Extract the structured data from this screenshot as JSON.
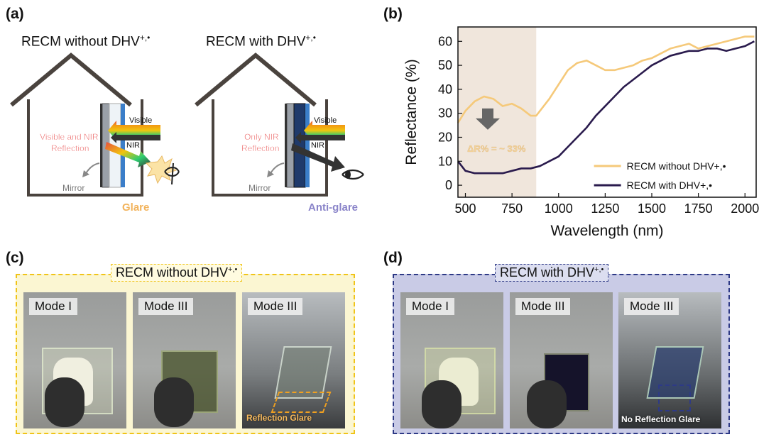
{
  "panels": {
    "a": {
      "label": "(a)",
      "left_house": {
        "title": "RECM without DHV",
        "title_sup": "+,•",
        "visible_label": "Visible",
        "nir_label": "NIR",
        "reflection_line1": "Visible and NIR",
        "reflection_line2": "Reflection",
        "mirror_label": "Mirror",
        "effect_label": "Glare"
      },
      "right_house": {
        "title": "RECM with DHV",
        "title_sup": "+,•",
        "visible_label": "Visible",
        "nir_label": "NIR",
        "reflection_line1": "Only NIR",
        "reflection_line2": "Reflection",
        "mirror_label": "Mirror",
        "effect_label": "Anti-glare"
      }
    },
    "b": {
      "label": "(b)"
    },
    "c": {
      "label": "(c)",
      "tag": "RECM without DHV",
      "tag_sup": "+,•",
      "photos": [
        {
          "mode": "Mode I"
        },
        {
          "mode": "Mode III"
        },
        {
          "mode": "Mode III",
          "caption": "Reflection Glare"
        }
      ]
    },
    "d": {
      "label": "(d)",
      "tag": "RECM with DHV",
      "tag_sup": "+,•",
      "photos": [
        {
          "mode": "Mode I"
        },
        {
          "mode": "Mode III"
        },
        {
          "mode": "Mode III",
          "caption": "No Reflection Glare"
        }
      ]
    }
  },
  "colors": {
    "without": "#f5c97a",
    "with": "#2a1b4d",
    "highlight": "#f0e6dc",
    "c_border": "#f0c419",
    "c_fill": "#fbf6d2",
    "d_border": "#2e3a86",
    "d_fill": "#c9cbe6",
    "glare_text": "#f2b35b",
    "antiglare_text": "#8a84c9",
    "reflection_text": "#e95757"
  },
  "chart_data": {
    "type": "line",
    "xlabel": "Wavelength (nm)",
    "ylabel": "Reflectance (%)",
    "xlim": [
      460,
      2060
    ],
    "ylim": [
      -5,
      66
    ],
    "xticks": [
      500,
      750,
      1000,
      1250,
      1500,
      1750,
      2000
    ],
    "yticks": [
      0,
      10,
      20,
      30,
      40,
      50,
      60
    ],
    "highlight_region": [
      460,
      880
    ],
    "annotation": "ΔR% = ~ 33%",
    "series": [
      {
        "name": "RECM without DHV+,•",
        "color": "#f5c97a",
        "x": [
          460,
          500,
          550,
          600,
          650,
          700,
          750,
          800,
          850,
          880,
          900,
          950,
          1000,
          1050,
          1100,
          1150,
          1200,
          1250,
          1300,
          1350,
          1400,
          1450,
          1500,
          1550,
          1600,
          1650,
          1700,
          1750,
          1800,
          1850,
          1900,
          1950,
          2000,
          2050
        ],
        "y": [
          26,
          31,
          35,
          37,
          36,
          33,
          34,
          32,
          29,
          29,
          31,
          36,
          42,
          48,
          51,
          52,
          50,
          48,
          48,
          49,
          50,
          52,
          53,
          55,
          57,
          58,
          59,
          57,
          58,
          59,
          60,
          61,
          62,
          62
        ]
      },
      {
        "name": "RECM with DHV+,•",
        "color": "#2a1b4d",
        "x": [
          460,
          500,
          550,
          600,
          650,
          700,
          750,
          800,
          850,
          900,
          950,
          1000,
          1050,
          1100,
          1150,
          1200,
          1250,
          1300,
          1350,
          1400,
          1450,
          1500,
          1550,
          1600,
          1650,
          1700,
          1750,
          1800,
          1850,
          1900,
          1950,
          2000,
          2050
        ],
        "y": [
          10,
          6,
          5,
          5,
          5,
          5,
          6,
          7,
          7,
          8,
          10,
          12,
          16,
          20,
          24,
          29,
          33,
          37,
          41,
          44,
          47,
          50,
          52,
          54,
          55,
          56,
          56,
          57,
          57,
          56,
          57,
          58,
          60
        ]
      }
    ]
  }
}
